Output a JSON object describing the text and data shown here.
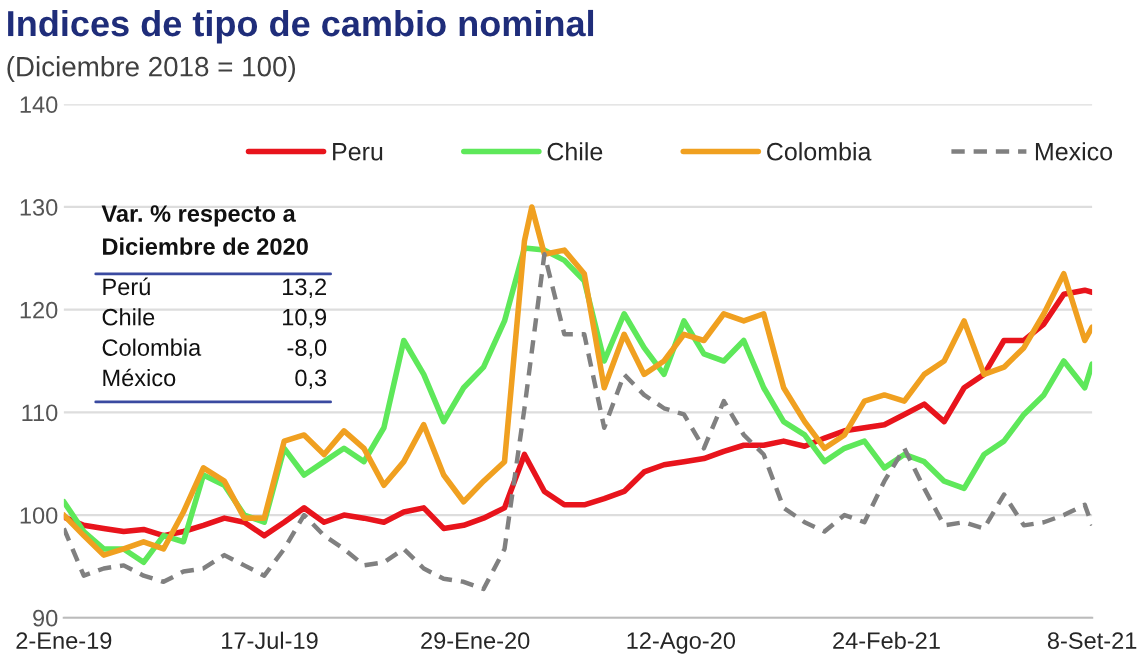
{
  "chart_data": {
    "type": "line",
    "title": "Indices de tipo de cambio nominal",
    "subtitle": "(Diciembre 2018 = 100)",
    "x": [
      "2019-01-02",
      "2019-01-21",
      "2019-02-09",
      "2019-02-28",
      "2019-03-19",
      "2019-04-07",
      "2019-04-26",
      "2019-05-15",
      "2019-06-04",
      "2019-06-23",
      "2019-07-12",
      "2019-07-31",
      "2019-08-19",
      "2019-09-07",
      "2019-09-26",
      "2019-10-15",
      "2019-11-03",
      "2019-11-22",
      "2019-12-11",
      "2019-12-30",
      "2020-01-18",
      "2020-02-06",
      "2020-02-26",
      "2020-03-16",
      "2020-04-04",
      "2020-04-23",
      "2020-05-12",
      "2020-05-31",
      "2020-06-19",
      "2020-07-08",
      "2020-07-27",
      "2020-08-15",
      "2020-09-03",
      "2020-09-22",
      "2020-10-11",
      "2020-10-30",
      "2020-11-18",
      "2020-12-08",
      "2020-12-27",
      "2021-01-15",
      "2021-02-03",
      "2021-02-22",
      "2021-03-13",
      "2021-04-01",
      "2021-04-20",
      "2021-05-09",
      "2021-05-28",
      "2021-06-16",
      "2021-07-05",
      "2021-07-24",
      "2021-08-12",
      "2021-09-01",
      "2021-09-08"
    ],
    "series": [
      {
        "name": "Peru",
        "color": "#e8141c",
        "line_style": "solid",
        "values": [
          99.8,
          99.0,
          98.7,
          98.4,
          98.6,
          98.0,
          98.4,
          99.0,
          99.7,
          99.3,
          98.0,
          99.3,
          100.7,
          99.3,
          100.0,
          99.7,
          99.3,
          100.3,
          100.7,
          98.7,
          99.0,
          99.7,
          100.7,
          105.9,
          102.3,
          101.0,
          101.0,
          101.6,
          102.3,
          104.2,
          104.9,
          105.2,
          105.5,
          106.2,
          106.8,
          106.8,
          107.2,
          106.7,
          107.5,
          108.2,
          108.5,
          108.8,
          109.8,
          110.8,
          109.1,
          112.4,
          113.7,
          117.0,
          117.0,
          118.6,
          121.5,
          121.9,
          121.7
        ]
      },
      {
        "name": "Chile",
        "color": "#5ee85a",
        "line_style": "solid",
        "values": [
          101.3,
          98.4,
          96.7,
          96.7,
          95.4,
          98.0,
          97.4,
          103.9,
          102.9,
          100.0,
          99.3,
          106.5,
          103.9,
          105.2,
          106.5,
          105.2,
          108.5,
          117.0,
          113.7,
          109.1,
          112.4,
          114.4,
          118.9,
          126.0,
          125.8,
          124.8,
          122.8,
          115.0,
          119.6,
          116.3,
          113.7,
          118.9,
          115.7,
          115.0,
          117.0,
          112.4,
          109.1,
          107.8,
          105.2,
          106.5,
          107.2,
          104.6,
          105.9,
          105.2,
          103.3,
          102.6,
          105.9,
          107.2,
          109.8,
          111.7,
          115.0,
          112.4,
          114.7
        ]
      },
      {
        "name": "Colombia",
        "color": "#f0a020",
        "line_style": "solid",
        "x": [
          "2019-01-02",
          "2019-01-21",
          "2019-02-09",
          "2019-02-28",
          "2019-03-19",
          "2019-04-07",
          "2019-04-26",
          "2019-05-15",
          "2019-06-04",
          "2019-06-23",
          "2019-07-12",
          "2019-07-31",
          "2019-08-19",
          "2019-09-07",
          "2019-09-26",
          "2019-10-15",
          "2019-11-03",
          "2019-11-22",
          "2019-12-11",
          "2019-12-30",
          "2020-01-18",
          "2020-02-06",
          "2020-02-26",
          "2020-03-16",
          "2020-03-23",
          "2020-04-04",
          "2020-04-23",
          "2020-05-12",
          "2020-05-31",
          "2020-06-19",
          "2020-07-08",
          "2020-07-27",
          "2020-08-15",
          "2020-09-03",
          "2020-09-22",
          "2020-10-11",
          "2020-10-30",
          "2020-11-18",
          "2020-12-08",
          "2020-12-27",
          "2021-01-15",
          "2021-02-03",
          "2021-02-22",
          "2021-03-13",
          "2021-04-01",
          "2021-04-20",
          "2021-05-09",
          "2021-05-28",
          "2021-06-16",
          "2021-07-05",
          "2021-07-24",
          "2021-08-12",
          "2021-09-01",
          "2021-09-08"
        ],
        "values": [
          100.0,
          98.0,
          96.1,
          96.7,
          97.4,
          96.7,
          100.3,
          104.6,
          103.3,
          99.7,
          99.7,
          107.2,
          107.8,
          105.9,
          108.2,
          106.5,
          102.9,
          105.2,
          108.8,
          103.9,
          101.3,
          103.3,
          105.2,
          126.7,
          130.0,
          125.4,
          125.8,
          123.5,
          112.4,
          117.6,
          113.7,
          115.0,
          117.6,
          117.0,
          119.6,
          118.9,
          119.6,
          112.4,
          109.1,
          106.5,
          107.8,
          111.1,
          111.7,
          111.1,
          113.7,
          115.0,
          118.9,
          113.7,
          114.4,
          116.3,
          119.6,
          123.5,
          117.0,
          118.3
        ]
      },
      {
        "name": "Mexico",
        "color": "#808080",
        "line_style": "dashed",
        "values": [
          98.7,
          94.1,
          94.8,
          95.1,
          94.1,
          93.5,
          94.5,
          94.8,
          96.1,
          95.1,
          94.1,
          96.7,
          100.0,
          98.0,
          96.7,
          95.1,
          95.4,
          96.7,
          94.8,
          93.8,
          93.5,
          92.8,
          96.7,
          110.4,
          125.4,
          117.6,
          117.6,
          108.5,
          113.7,
          111.7,
          110.4,
          109.8,
          106.5,
          111.1,
          107.8,
          105.9,
          100.7,
          99.3,
          98.4,
          100.0,
          99.3,
          103.3,
          106.5,
          102.6,
          99.0,
          99.3,
          98.7,
          102.0,
          99.0,
          99.3,
          100.0,
          101.0,
          99.0
        ]
      }
    ],
    "xlim": [
      "2019-01-02",
      "2021-09-08"
    ],
    "xticks": [
      {
        "value": "2019-01-02",
        "label": "2-Ene-19"
      },
      {
        "value": "2019-07-17",
        "label": "17-Jul-19"
      },
      {
        "value": "2020-01-29",
        "label": "29-Ene-20"
      },
      {
        "value": "2020-08-12",
        "label": "12-Ago-20"
      },
      {
        "value": "2021-02-24",
        "label": "24-Feb-21"
      },
      {
        "value": "2021-09-08",
        "label": "8-Set-21"
      }
    ],
    "ylim": [
      90,
      140
    ],
    "yticks": [
      90,
      100,
      110,
      120,
      130,
      140
    ],
    "grid": "y",
    "legend": "top",
    "annotations": [
      "Var. % respecto a",
      "Diciembre de 2020",
      "Perú",
      "13,2",
      "Chile",
      "10,9",
      "Colombia",
      "-8,0",
      "México",
      "0,3"
    ]
  }
}
